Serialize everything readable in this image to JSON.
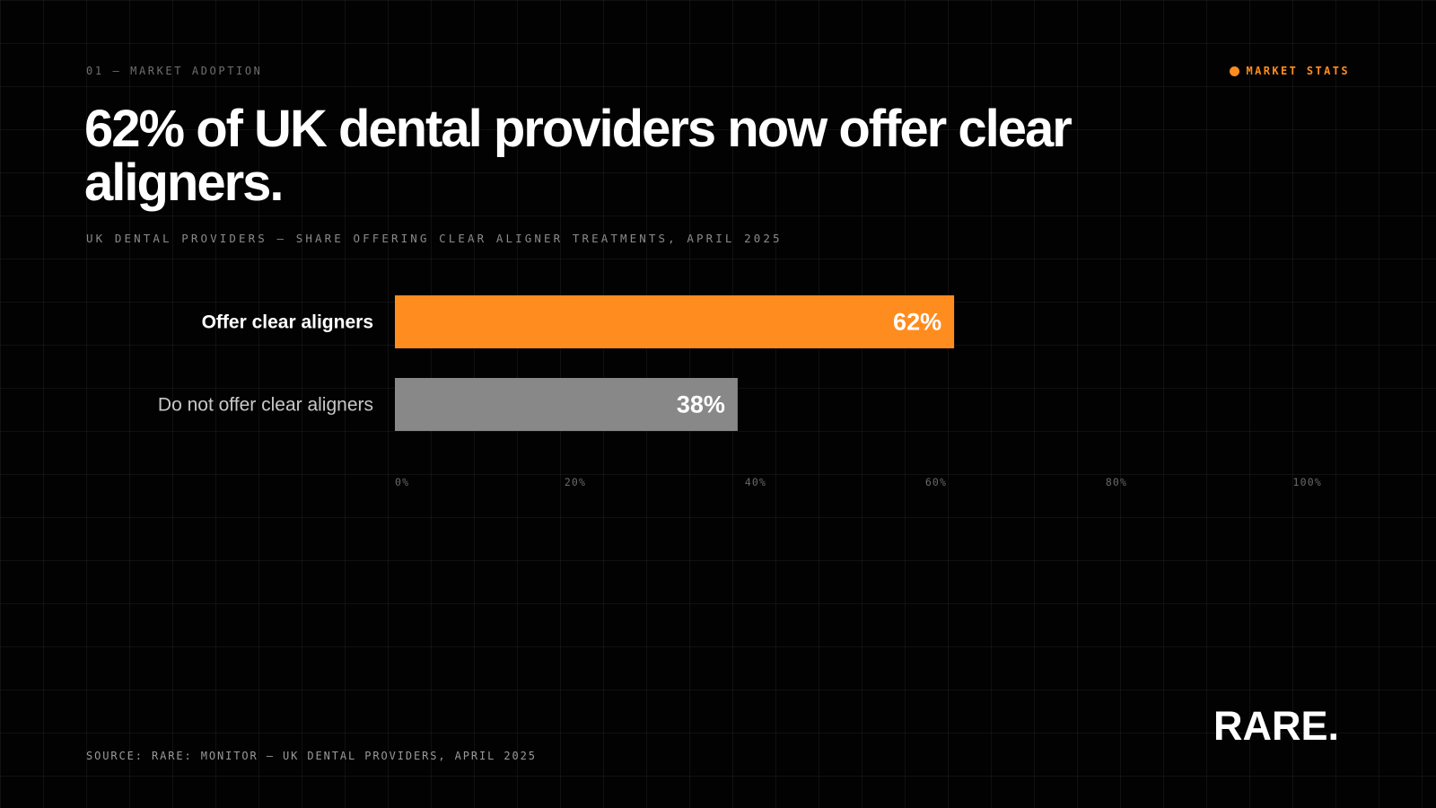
{
  "header": {
    "eyebrow": "01 — MARKET ADOPTION",
    "tag_label": "MARKET STATS"
  },
  "title": "62% of UK dental providers now offer clear aligners.",
  "subtitle": "UK DENTAL PROVIDERS — SHARE OFFERING CLEAR ALIGNER TREATMENTS, APRIL 2025",
  "footer": {
    "source": "SOURCE: RARE: MONITOR — UK DENTAL PROVIDERS, APRIL 2025",
    "logo": "RARE."
  },
  "colors": {
    "accent": "#FF8C1F",
    "muted_bar": "#888888",
    "background": "#020202",
    "text": "#FFFFFF"
  },
  "chart_data": {
    "type": "bar",
    "orientation": "horizontal",
    "categories": [
      "Offer clear aligners",
      "Do not offer clear aligners"
    ],
    "values": [
      62,
      38
    ],
    "value_labels": [
      "62%",
      "38%"
    ],
    "xlim": [
      0,
      100
    ],
    "x_ticks": [
      0,
      20,
      40,
      60,
      80,
      100
    ],
    "x_tick_labels": [
      "0%",
      "20%",
      "40%",
      "60%",
      "80%",
      "100%"
    ],
    "bar_colors": [
      "#FF8C1F",
      "#888888"
    ],
    "highlighted_category": "Offer clear aligners",
    "grid": true
  }
}
